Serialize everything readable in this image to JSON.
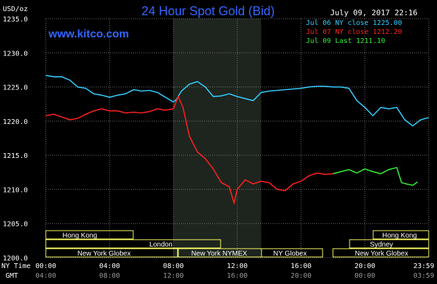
{
  "header": {
    "unit": "USD/oz",
    "title": "24 Hour Spot Gold (Bid)",
    "date": "July 09, 2017 22:16",
    "site": "www.kitco.com"
  },
  "legend": [
    {
      "text": "Jul 06 NY close 1225.00",
      "color": "#33ccff"
    },
    {
      "text": "Jul 07 NY close 1212.20",
      "color": "#ff2020"
    },
    {
      "text": "Jul 09 Last 1211.10",
      "color": "#33ee33"
    }
  ],
  "axis_labels": {
    "ny_time": "NY Time",
    "gmt": "GMT"
  },
  "sessions": [
    {
      "label": "Hong Kong"
    },
    {
      "label": "London"
    },
    {
      "label": "New York Globex"
    },
    {
      "label": "New York NYMEX"
    },
    {
      "label": "NY Globex"
    },
    {
      "label": "Hong Kong"
    },
    {
      "label": "Sydney"
    },
    {
      "label": "New York Globex"
    }
  ],
  "colors": {
    "background": "#000000",
    "grid": "#7a7a7a",
    "text": "#ffffff",
    "title": "#3366ff",
    "session_box": "#ffff66",
    "nymex_shade": "#1e251e"
  },
  "chart_data": {
    "type": "line",
    "title": "24 Hour Spot Gold (Bid)",
    "ylabel": "USD/oz",
    "xlabel": "NY Time",
    "xlim": [
      0,
      24
    ],
    "ylim": [
      1200,
      1235
    ],
    "yticks": [
      "1200.0",
      "1205.0",
      "1210.0",
      "1215.0",
      "1220.0",
      "1225.0",
      "1230.0",
      "1235.0"
    ],
    "xticks_ny": [
      "00:00",
      "04:00",
      "08:00",
      "12:00",
      "16:00",
      "20:00",
      "23:59"
    ],
    "xticks_gmt": [
      "04:00",
      "08:00",
      "12:00",
      "16:00",
      "20:00",
      "00:00",
      "03:59"
    ],
    "grid": true,
    "series": [
      {
        "name": "Jul 06 NY close 1225.00",
        "color": "#33ccff",
        "x": [
          0,
          0.5,
          1,
          1.5,
          2,
          2.5,
          3,
          3.5,
          4,
          4.5,
          5,
          5.5,
          6,
          6.5,
          7,
          7.5,
          8,
          8.2,
          8.5,
          9,
          9.5,
          10,
          10.5,
          11,
          11.5,
          12,
          12.5,
          13,
          13.5,
          14,
          15,
          16,
          16.5,
          17,
          17.5,
          18,
          18.5,
          19,
          19.5,
          20,
          20.5,
          21,
          21.5,
          22,
          22.5,
          23,
          23.5,
          24
        ],
        "y": [
          1226.7,
          1226.5,
          1226.5,
          1226.0,
          1225.0,
          1224.8,
          1224.0,
          1223.8,
          1223.5,
          1223.8,
          1224.0,
          1224.6,
          1224.4,
          1224.5,
          1224.2,
          1223.5,
          1222.8,
          1223.2,
          1224.4,
          1225.4,
          1225.8,
          1225.0,
          1223.6,
          1223.7,
          1224.0,
          1223.6,
          1223.3,
          1223.0,
          1224.2,
          1224.4,
          1224.6,
          1224.8,
          1225.0,
          1225.1,
          1225.1,
          1225.0,
          1225.0,
          1224.8,
          1223.0,
          1222.0,
          1220.8,
          1222.0,
          1221.8,
          1222.0,
          1220.2,
          1219.3,
          1220.2,
          1220.5
        ]
      },
      {
        "name": "Jul 07 NY close 1212.20",
        "color": "#ff2020",
        "x": [
          0,
          0.5,
          1,
          1.5,
          2,
          2.5,
          3,
          3.5,
          4,
          4.5,
          5,
          5.5,
          6,
          6.5,
          7,
          7.5,
          8,
          8.3,
          8.6,
          9,
          9.5,
          10,
          10.5,
          11,
          11.5,
          11.8,
          12,
          12.5,
          13,
          13.5,
          14,
          14.5,
          15,
          15.5,
          16,
          16.5,
          17,
          17.5,
          18
        ],
        "y": [
          1220.8,
          1221.0,
          1220.6,
          1220.2,
          1220.4,
          1221.0,
          1221.5,
          1221.8,
          1221.5,
          1221.5,
          1221.2,
          1221.3,
          1221.2,
          1221.4,
          1221.8,
          1221.6,
          1221.8,
          1223.6,
          1222.0,
          1217.8,
          1215.5,
          1214.5,
          1213.0,
          1211.0,
          1210.4,
          1208.0,
          1210.0,
          1211.4,
          1210.8,
          1211.2,
          1211.0,
          1210.0,
          1209.8,
          1210.8,
          1211.2,
          1212.0,
          1212.4,
          1212.2,
          1212.3
        ]
      },
      {
        "name": "Jul 09 Last 1211.10",
        "color": "#33ee33",
        "x": [
          18,
          18.5,
          19,
          19.5,
          20,
          20.5,
          21,
          21.5,
          22,
          22.3,
          22.6,
          23,
          23.3
        ],
        "y": [
          1212.3,
          1212.6,
          1212.9,
          1212.4,
          1213.0,
          1212.6,
          1212.3,
          1212.9,
          1213.2,
          1211.0,
          1210.8,
          1210.6,
          1211.1
        ]
      }
    ]
  }
}
